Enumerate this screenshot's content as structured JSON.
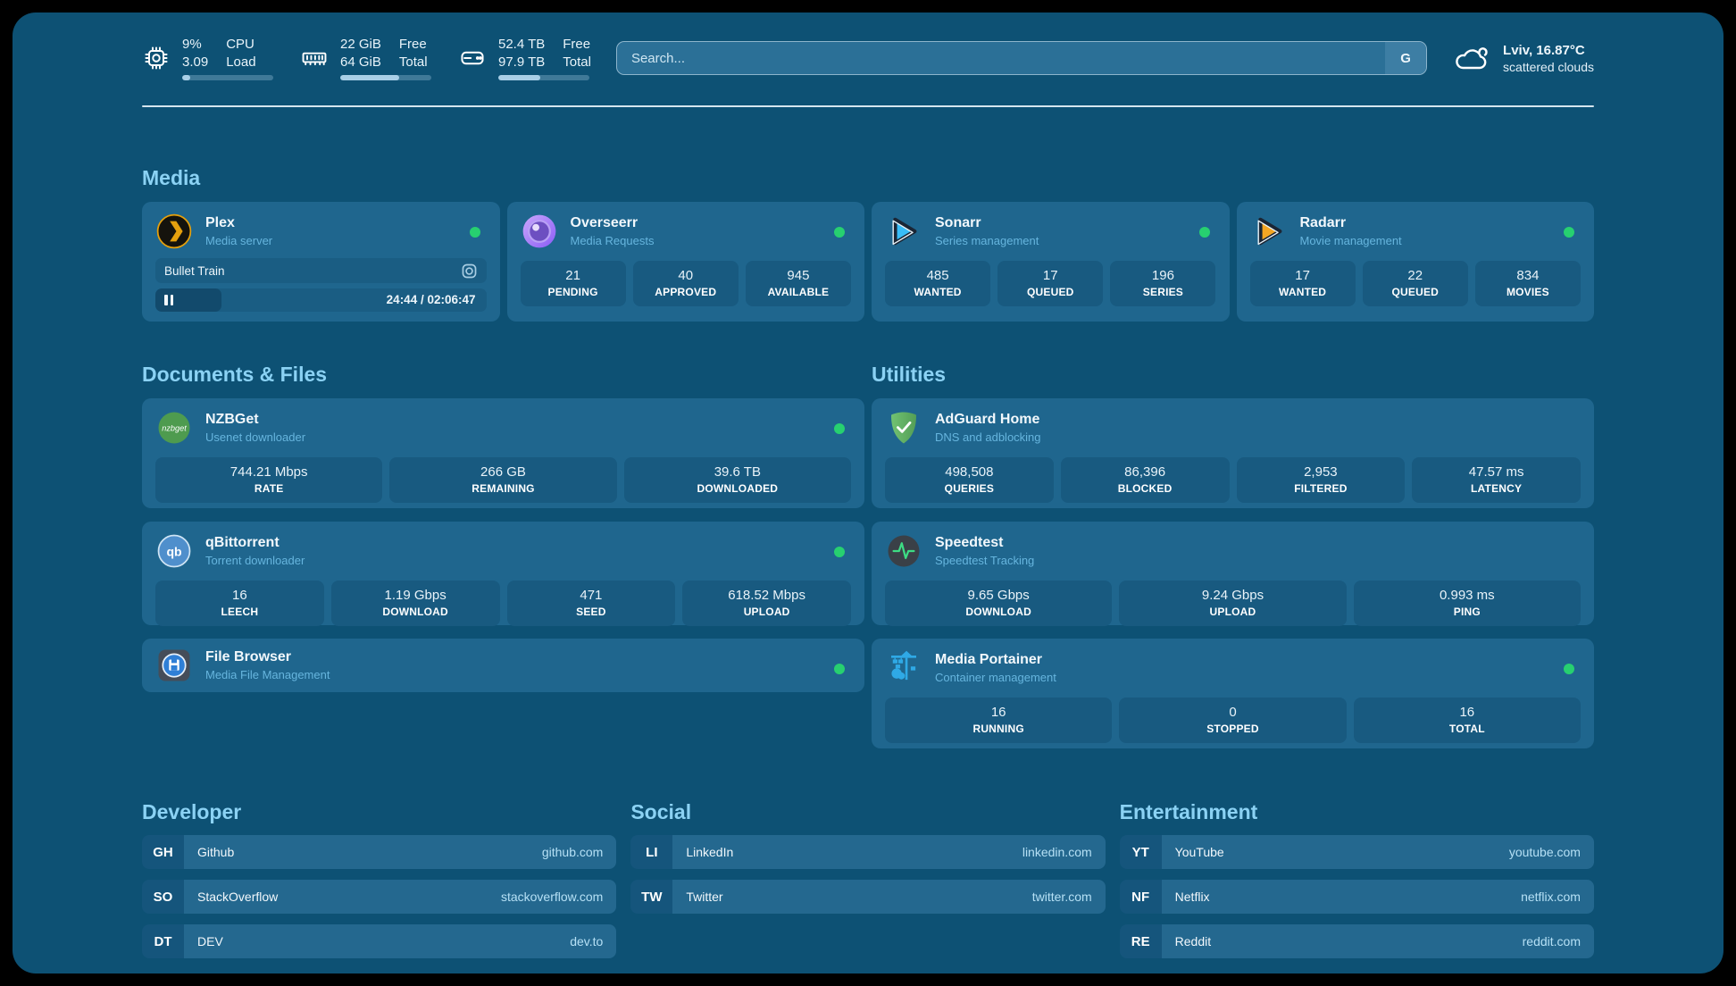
{
  "topbar": {
    "cpu": {
      "value_top": "9%",
      "value_bottom": "3.09",
      "label_top": "CPU",
      "label_bottom": "Load",
      "progress_pct": 9
    },
    "memory": {
      "value_top": "22 GiB",
      "value_bottom": "64 GiB",
      "label_top": "Free",
      "label_bottom": "Total",
      "progress_pct": 65
    },
    "storage": {
      "value_top": "52.4 TB",
      "value_bottom": "97.9 TB",
      "label_top": "Free",
      "label_bottom": "Total",
      "progress_pct": 46
    },
    "search": {
      "placeholder": "Search...",
      "engine_button": "G"
    },
    "weather": {
      "title": "Lviv, 16.87°C",
      "condition": "scattered clouds"
    }
  },
  "sections": {
    "media": {
      "title": "Media",
      "cards": [
        {
          "name": "Plex",
          "subtitle": "Media server",
          "online": true,
          "now_playing": {
            "title": "Bullet Train",
            "time": "24:44 / 02:06:47",
            "progress_pct": 20
          }
        },
        {
          "name": "Overseerr",
          "subtitle": "Media Requests",
          "online": true,
          "stats": [
            {
              "value": "21",
              "label": "PENDING"
            },
            {
              "value": "40",
              "label": "APPROVED"
            },
            {
              "value": "945",
              "label": "AVAILABLE"
            }
          ]
        },
        {
          "name": "Sonarr",
          "subtitle": "Series management",
          "online": true,
          "stats": [
            {
              "value": "485",
              "label": "WANTED"
            },
            {
              "value": "17",
              "label": "QUEUED"
            },
            {
              "value": "196",
              "label": "SERIES"
            }
          ]
        },
        {
          "name": "Radarr",
          "subtitle": "Movie management",
          "online": true,
          "stats": [
            {
              "value": "17",
              "label": "WANTED"
            },
            {
              "value": "22",
              "label": "QUEUED"
            },
            {
              "value": "834",
              "label": "MOVIES"
            }
          ]
        }
      ]
    },
    "documents": {
      "title": "Documents & Files",
      "cards": [
        {
          "name": "NZBGet",
          "subtitle": "Usenet downloader",
          "online": true,
          "stats": [
            {
              "value": "744.21 Mbps",
              "label": "RATE"
            },
            {
              "value": "266 GB",
              "label": "REMAINING"
            },
            {
              "value": "39.6 TB",
              "label": "DOWNLOADED"
            }
          ]
        },
        {
          "name": "qBittorrent",
          "subtitle": "Torrent downloader",
          "online": true,
          "stats": [
            {
              "value": "16",
              "label": "LEECH"
            },
            {
              "value": "1.19 Gbps",
              "label": "DOWNLOAD"
            },
            {
              "value": "471",
              "label": "SEED"
            },
            {
              "value": "618.52 Mbps",
              "label": "UPLOAD"
            }
          ]
        },
        {
          "name": "File Browser",
          "subtitle": "Media File Management",
          "online": true
        }
      ]
    },
    "utilities": {
      "title": "Utilities",
      "cards": [
        {
          "name": "AdGuard Home",
          "subtitle": "DNS and adblocking",
          "online": false,
          "stats": [
            {
              "value": "498,508",
              "label": "QUERIES"
            },
            {
              "value": "86,396",
              "label": "BLOCKED"
            },
            {
              "value": "2,953",
              "label": "FILTERED"
            },
            {
              "value": "47.57 ms",
              "label": "LATENCY"
            }
          ]
        },
        {
          "name": "Speedtest",
          "subtitle": "Speedtest Tracking",
          "online": false,
          "stats": [
            {
              "value": "9.65 Gbps",
              "label": "DOWNLOAD"
            },
            {
              "value": "9.24 Gbps",
              "label": "UPLOAD"
            },
            {
              "value": "0.993 ms",
              "label": "PING"
            }
          ]
        },
        {
          "name": "Media Portainer",
          "subtitle": "Container management",
          "online": true,
          "stats": [
            {
              "value": "16",
              "label": "RUNNING"
            },
            {
              "value": "0",
              "label": "STOPPED"
            },
            {
              "value": "16",
              "label": "TOTAL"
            }
          ]
        }
      ]
    },
    "links": [
      {
        "title": "Developer",
        "items": [
          {
            "abbr": "GH",
            "name": "Github",
            "domain": "github.com"
          },
          {
            "abbr": "SO",
            "name": "StackOverflow",
            "domain": "stackoverflow.com"
          },
          {
            "abbr": "DT",
            "name": "DEV",
            "domain": "dev.to"
          }
        ]
      },
      {
        "title": "Social",
        "items": [
          {
            "abbr": "LI",
            "name": "LinkedIn",
            "domain": "linkedin.com"
          },
          {
            "abbr": "TW",
            "name": "Twitter",
            "domain": "twitter.com"
          }
        ]
      },
      {
        "title": "Entertainment",
        "items": [
          {
            "abbr": "YT",
            "name": "YouTube",
            "domain": "youtube.com"
          },
          {
            "abbr": "NF",
            "name": "Netflix",
            "domain": "netflix.com"
          },
          {
            "abbr": "RE",
            "name": "Reddit",
            "domain": "reddit.com"
          }
        ]
      }
    ]
  },
  "colors": {
    "background": "#0d5174",
    "card": "#1f668e",
    "stat_box": "#185a80",
    "heading": "#8bd2f4",
    "subtitle": "#66b5de",
    "online_dot": "#27d070"
  }
}
